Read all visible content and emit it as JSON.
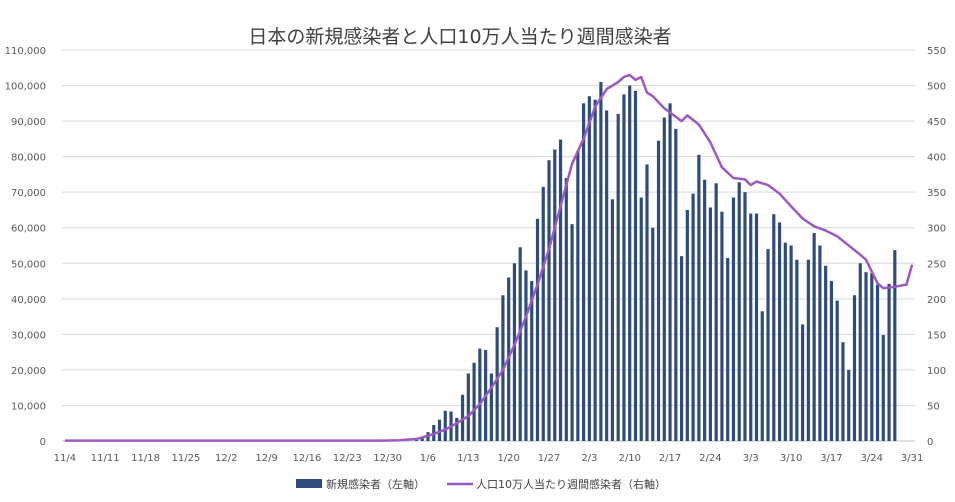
{
  "chart_data": {
    "type": "bar+line",
    "title": "日本の新規感染者と人口10万人当たり週間感染者",
    "y_left": {
      "min": 0,
      "max": 110000,
      "step": 10000
    },
    "y_right": {
      "min": 0,
      "max": 550,
      "step": 50
    },
    "y_left_ticks": [
      "0",
      "10,000",
      "20,000",
      "30,000",
      "40,000",
      "50,000",
      "60,000",
      "70,000",
      "80,000",
      "90,000",
      "100,000",
      "110,000"
    ],
    "y_right_ticks": [
      "0",
      "50",
      "100",
      "150",
      "200",
      "250",
      "300",
      "350",
      "400",
      "450",
      "500",
      "550"
    ],
    "x_ticks": [
      {
        "label": "11/4",
        "day": 0
      },
      {
        "label": "11/11",
        "day": 7
      },
      {
        "label": "11/18",
        "day": 14
      },
      {
        "label": "11/25",
        "day": 21
      },
      {
        "label": "12/2",
        "day": 28
      },
      {
        "label": "12/9",
        "day": 35
      },
      {
        "label": "12/16",
        "day": 42
      },
      {
        "label": "12/23",
        "day": 49
      },
      {
        "label": "12/30",
        "day": 56
      },
      {
        "label": "1/6",
        "day": 63
      },
      {
        "label": "1/13",
        "day": 70
      },
      {
        "label": "1/20",
        "day": 77
      },
      {
        "label": "1/27",
        "day": 84
      },
      {
        "label": "2/3",
        "day": 91
      },
      {
        "label": "2/10",
        "day": 98
      },
      {
        "label": "2/17",
        "day": 105
      },
      {
        "label": "2/24",
        "day": 112
      },
      {
        "label": "3/3",
        "day": 119
      },
      {
        "label": "3/10",
        "day": 126
      },
      {
        "label": "3/17",
        "day": 133
      },
      {
        "label": "3/24",
        "day": 140
      },
      {
        "label": "3/31",
        "day": 147
      }
    ],
    "total_days": 148,
    "bars_start_day": 61,
    "series": [
      {
        "name": "新規感染者（左軸）",
        "axis": "left",
        "color": "#2f4b7c",
        "values": [
          400,
          800,
          2500,
          4500,
          6000,
          8500,
          8300,
          6500,
          13000,
          19000,
          22000,
          26000,
          25600,
          19000,
          32000,
          41000,
          46000,
          50000,
          54500,
          48000,
          45000,
          62500,
          71500,
          79000,
          82000,
          84800,
          74000,
          61000,
          81500,
          95000,
          97000,
          96000,
          101000,
          93000,
          68000,
          92000,
          97500,
          100000,
          98500,
          68500,
          77800,
          60000,
          84500,
          91000,
          95000,
          87800,
          52000,
          65000,
          69600,
          80500,
          73500,
          65700,
          72500,
          64500,
          51500,
          68500,
          72800,
          70000,
          64000,
          64000,
          36500,
          54000,
          63800,
          61500,
          55800,
          55000,
          51000,
          32800,
          51000,
          58500,
          55000,
          49300,
          45000,
          39500,
          27800,
          20000,
          41000,
          50000,
          47500,
          47200,
          44000,
          29800,
          44200,
          53700
        ]
      },
      {
        "name": "人口10万人当たり週間感染者（右軸）",
        "axis": "right",
        "color": "#9b59c6",
        "points": [
          [
            0,
            0.5
          ],
          [
            55,
            0.5
          ],
          [
            58,
            1
          ],
          [
            61,
            3
          ],
          [
            62,
            5
          ],
          [
            64,
            10
          ],
          [
            66,
            16
          ],
          [
            68,
            25
          ],
          [
            70,
            35
          ],
          [
            72,
            52
          ],
          [
            74,
            75
          ],
          [
            76,
            100
          ],
          [
            78,
            135
          ],
          [
            80,
            175
          ],
          [
            82,
            220
          ],
          [
            84,
            270
          ],
          [
            86,
            330
          ],
          [
            88,
            390
          ],
          [
            90,
            425
          ],
          [
            92,
            470
          ],
          [
            94,
            495
          ],
          [
            96,
            505
          ],
          [
            97,
            512
          ],
          [
            98,
            515
          ],
          [
            99,
            508
          ],
          [
            100,
            512
          ],
          [
            101,
            490
          ],
          [
            102,
            485
          ],
          [
            104,
            468
          ],
          [
            106,
            456
          ],
          [
            107,
            450
          ],
          [
            108,
            458
          ],
          [
            110,
            445
          ],
          [
            112,
            420
          ],
          [
            114,
            385
          ],
          [
            116,
            370
          ],
          [
            118,
            368
          ],
          [
            119,
            360
          ],
          [
            120,
            365
          ],
          [
            122,
            360
          ],
          [
            124,
            348
          ],
          [
            126,
            330
          ],
          [
            128,
            313
          ],
          [
            130,
            302
          ],
          [
            132,
            296
          ],
          [
            134,
            288
          ],
          [
            136,
            275
          ],
          [
            138,
            262
          ],
          [
            139,
            255
          ],
          [
            141,
            222
          ],
          [
            142,
            215
          ],
          [
            144,
            217
          ],
          [
            146,
            220
          ],
          [
            147,
            248
          ]
        ]
      }
    ],
    "legend_position": "bottom-center"
  }
}
